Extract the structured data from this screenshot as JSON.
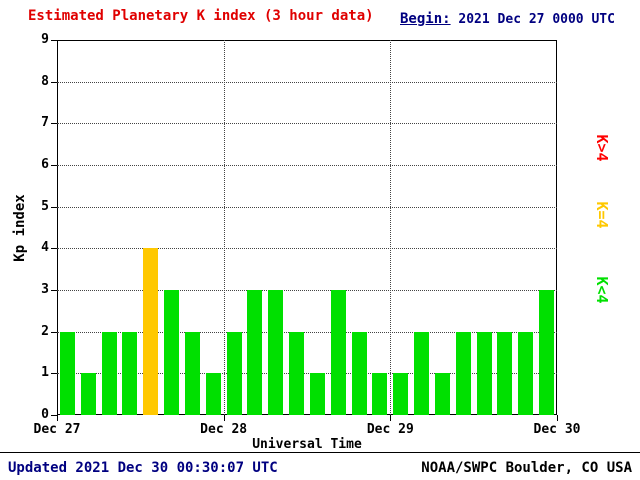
{
  "header": {
    "title": "Estimated Planetary K index (3 hour data)",
    "title_color": "#e00000",
    "begin_label": "Begin:",
    "begin_value": " 2021 Dec 27 0000 UTC",
    "begin_color": "#000080"
  },
  "chart_data": {
    "type": "bar",
    "title": "Estimated Planetary K index (3 hour data)",
    "xlabel": "Universal Time",
    "ylabel": "Kp index",
    "ylim": [
      0,
      9
    ],
    "y_ticks": [
      0,
      1,
      2,
      3,
      4,
      5,
      6,
      7,
      8,
      9
    ],
    "x_tick_labels": [
      "Dec 27",
      "Dec 28",
      "Dec 29",
      "Dec 30"
    ],
    "bar_interval_hours": 3,
    "values": [
      2,
      1,
      2,
      2,
      4,
      3,
      2,
      1,
      2,
      3,
      3,
      2,
      1,
      3,
      2,
      1,
      1,
      2,
      1,
      2,
      2,
      2,
      2,
      3
    ],
    "colors": {
      "low": "#00e000",
      "mid": "#ffc800",
      "high": "#ff0000"
    },
    "color_rule": "green if K<4, yellow if K=4, red if K>4",
    "grid": "dotted horizontal lines at each integer, dotted vertical lines at day boundaries",
    "legend_position": "right, rotated 90deg"
  },
  "legend": [
    {
      "label": "K>4",
      "color": "#ff0000"
    },
    {
      "label": "K=4",
      "color": "#ffc800"
    },
    {
      "label": "K<4",
      "color": "#00e000"
    }
  ],
  "footer": {
    "updated": "Updated 2021 Dec 30 00:30:07 UTC",
    "source": "NOAA/SWPC Boulder, CO USA"
  }
}
